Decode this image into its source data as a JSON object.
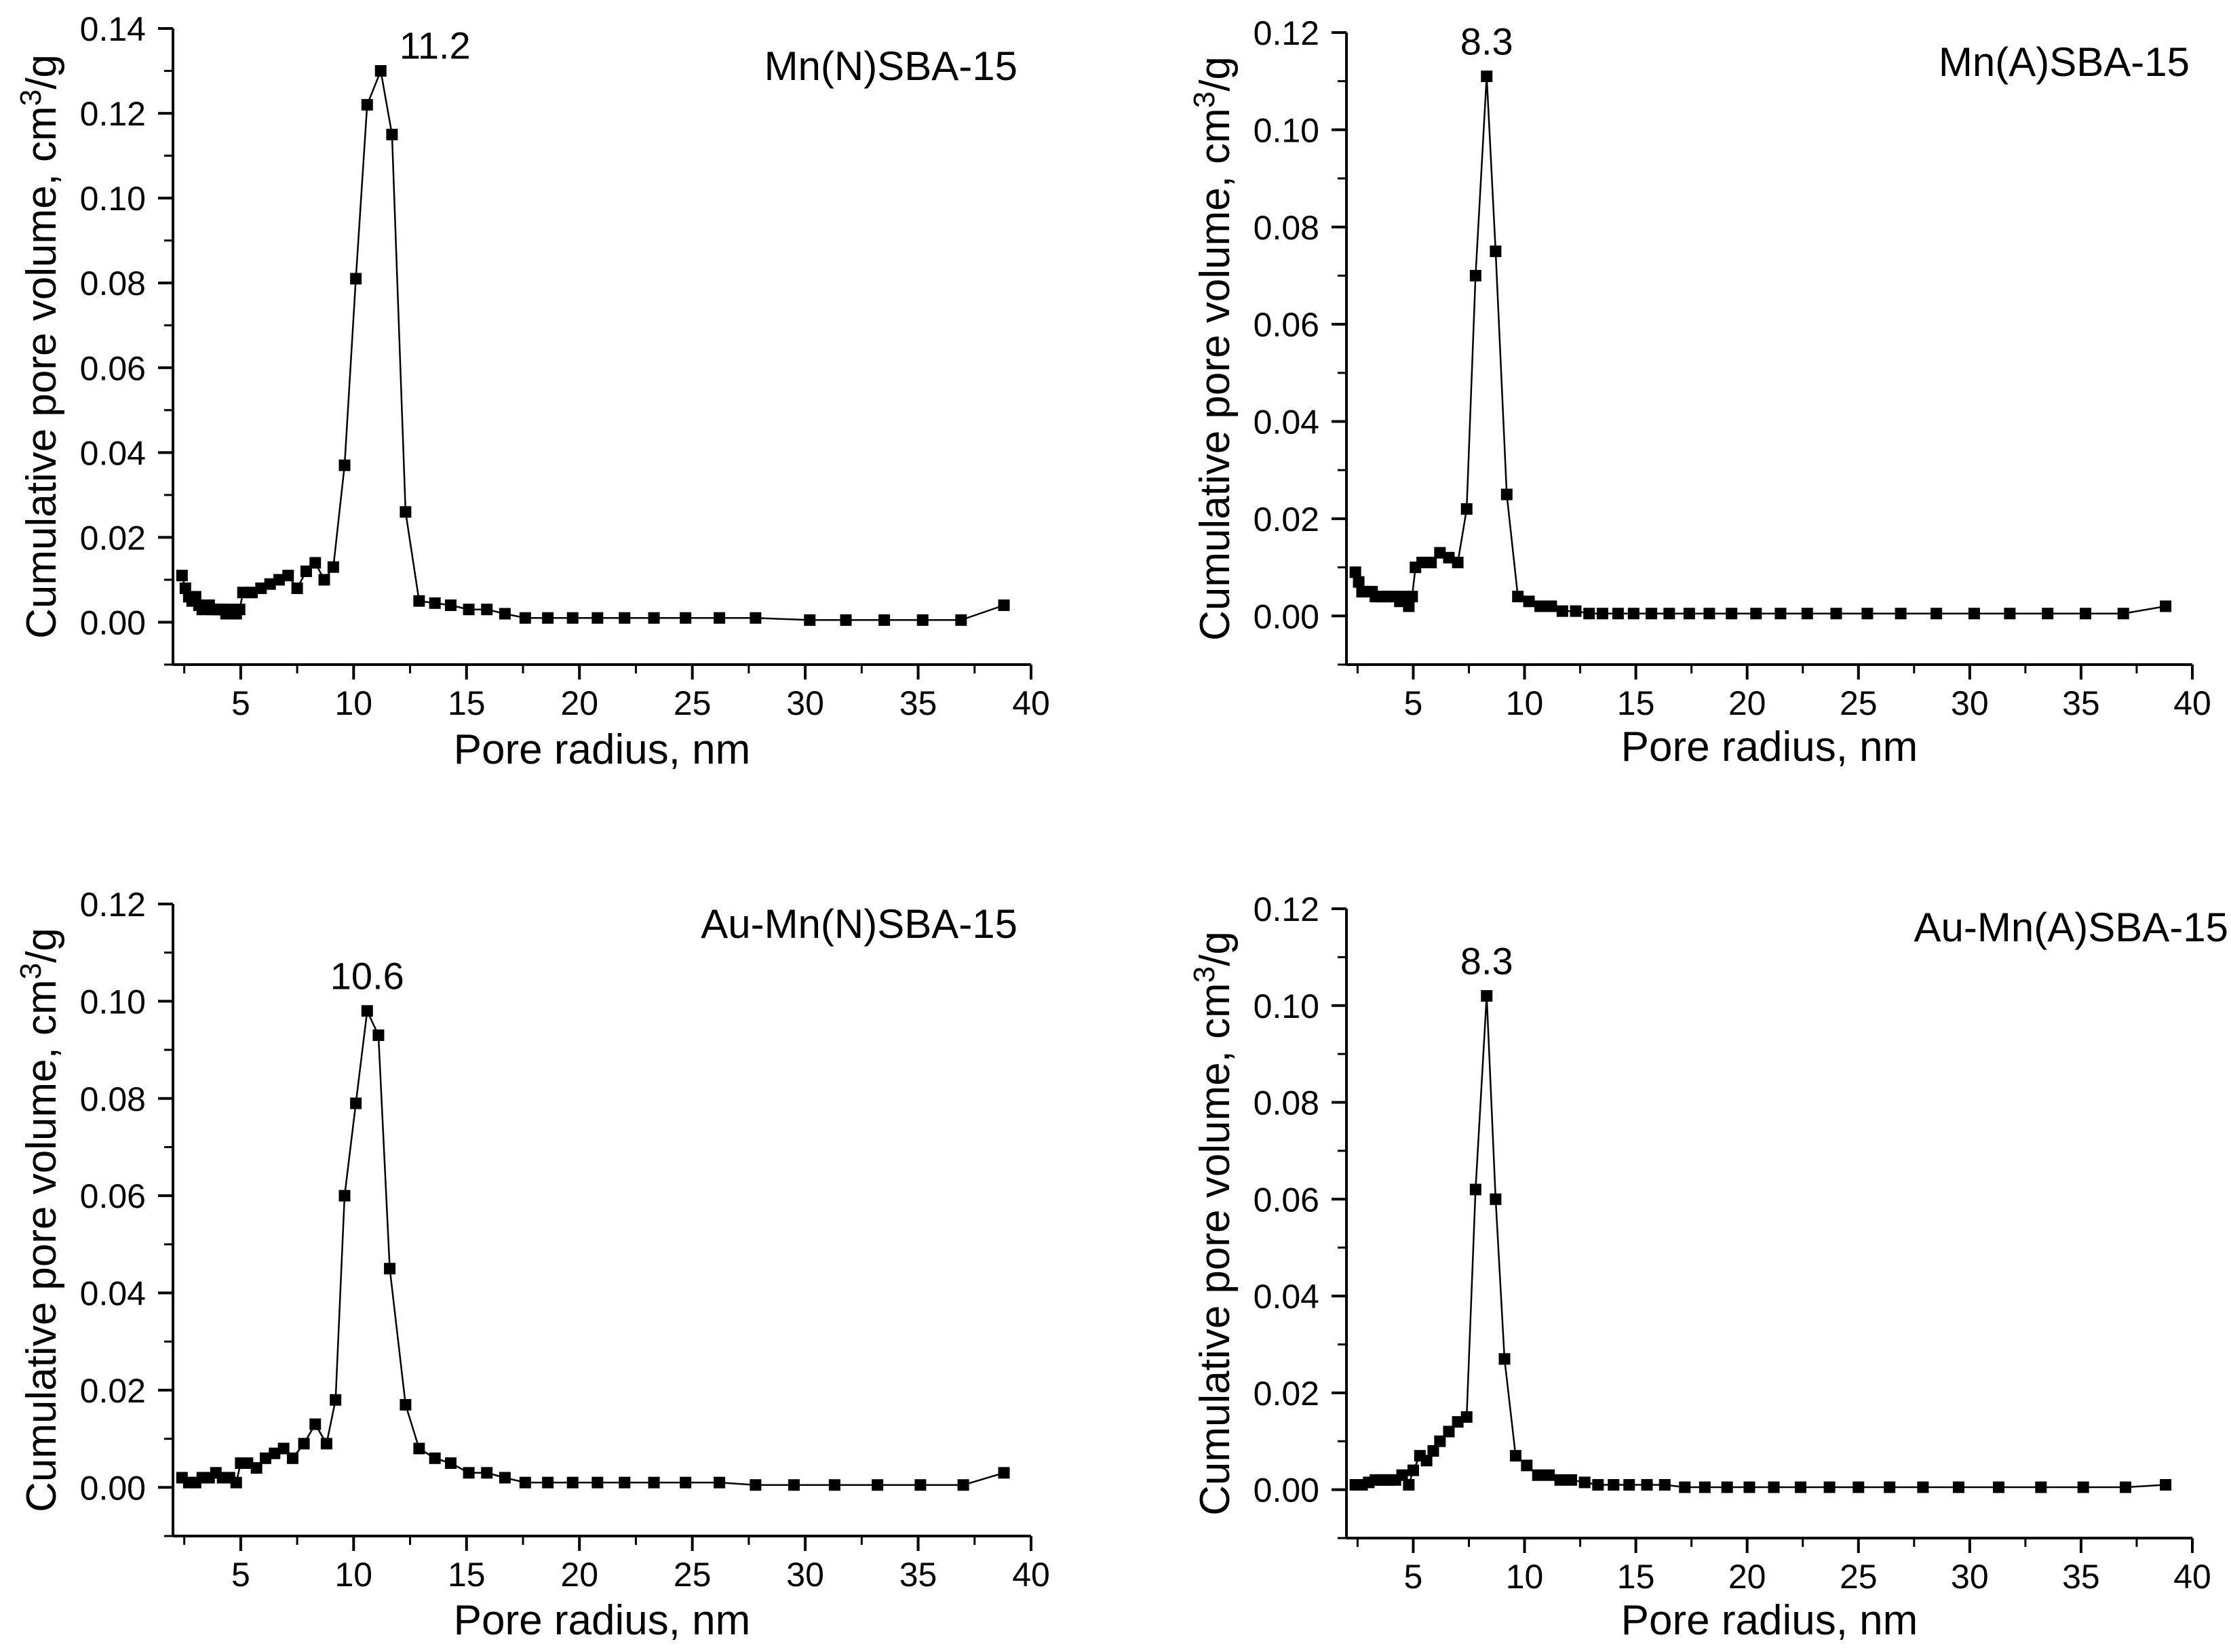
{
  "figure": {
    "colors": {
      "line": "#000000",
      "marker": "#000000",
      "background": "#ffffff"
    }
  },
  "chart_data": [
    {
      "type": "scatter",
      "title": "Mn(N)SBA-15",
      "xlabel": "Pore radius, nm",
      "ylabel": "Cumulative pore volume, cm3/g",
      "ylabel_parts": {
        "main": "Cumulative pore volume, cm",
        "sup": "3",
        "tail": "/g"
      },
      "xlim": [
        2,
        40
      ],
      "ylim": [
        -0.01,
        0.14
      ],
      "xticks": [
        5,
        10,
        15,
        20,
        25,
        30,
        35,
        40
      ],
      "yticks": [
        0.0,
        0.02,
        0.04,
        0.06,
        0.08,
        0.1,
        0.12,
        0.14
      ],
      "xtick_labels": [
        "5",
        "10",
        "15",
        "20",
        "25",
        "30",
        "35",
        "40"
      ],
      "ytick_labels": [
        "0.00",
        "0.02",
        "0.04",
        "0.06",
        "0.08",
        "0.10",
        "0.12",
        "0.14"
      ],
      "peak": {
        "label": "11.2",
        "x": 11.2,
        "y": 0.13
      },
      "series": [
        {
          "name": "Mn(N)SBA-15",
          "x": [
            2.4,
            2.55,
            2.7,
            2.85,
            3.0,
            3.15,
            3.3,
            3.45,
            3.6,
            3.75,
            3.9,
            4.05,
            4.2,
            4.35,
            4.5,
            4.65,
            4.8,
            4.95,
            5.1,
            5.5,
            5.9,
            6.3,
            6.7,
            7.1,
            7.5,
            7.9,
            8.3,
            8.7,
            9.1,
            9.6,
            10.1,
            10.6,
            11.2,
            11.7,
            12.3,
            12.9,
            13.6,
            14.3,
            15.1,
            15.9,
            16.7,
            17.6,
            18.6,
            19.7,
            20.8,
            22.0,
            23.3,
            24.7,
            26.2,
            27.8,
            30.2,
            31.8,
            33.5,
            35.2,
            36.9,
            38.8
          ],
          "y": [
            0.011,
            0.008,
            0.006,
            0.005,
            0.006,
            0.004,
            0.003,
            0.004,
            0.004,
            0.003,
            0.003,
            0.003,
            0.003,
            0.002,
            0.003,
            0.002,
            0.002,
            0.003,
            0.007,
            0.007,
            0.008,
            0.009,
            0.01,
            0.011,
            0.008,
            0.012,
            0.014,
            0.01,
            0.013,
            0.037,
            0.081,
            0.122,
            0.13,
            0.115,
            0.026,
            0.005,
            0.0045,
            0.004,
            0.003,
            0.003,
            0.002,
            0.001,
            0.001,
            0.001,
            0.001,
            0.001,
            0.001,
            0.001,
            0.001,
            0.001,
            0.0005,
            0.0005,
            0.0005,
            0.0005,
            0.0005,
            0.004
          ]
        }
      ]
    },
    {
      "type": "scatter",
      "title": "Mn(A)SBA-15",
      "xlabel": "Pore radius, nm",
      "ylabel": "Cumulative pore volume, cm3/g",
      "ylabel_parts": {
        "main": "Cumulative pore volume, cm",
        "sup": "3",
        "tail": "/g"
      },
      "xlim": [
        2,
        40
      ],
      "ylim": [
        -0.01,
        0.12
      ],
      "xticks": [
        5,
        10,
        15,
        20,
        25,
        30,
        35,
        40
      ],
      "yticks": [
        0.0,
        0.02,
        0.04,
        0.06,
        0.08,
        0.1,
        0.12
      ],
      "xtick_labels": [
        "5",
        "10",
        "15",
        "20",
        "25",
        "30",
        "35",
        "40"
      ],
      "ytick_labels": [
        "0.00",
        "0.02",
        "0.04",
        "0.06",
        "0.08",
        "0.10",
        "0.12"
      ],
      "peak": {
        "label": "8.3",
        "x": 8.3,
        "y": 0.111
      },
      "series": [
        {
          "name": "Mn(A)SBA-15",
          "x": [
            2.4,
            2.55,
            2.7,
            2.85,
            3.0,
            3.15,
            3.3,
            3.45,
            3.6,
            3.8,
            4.0,
            4.2,
            4.4,
            4.6,
            4.8,
            4.95,
            5.1,
            5.4,
            5.8,
            6.2,
            6.6,
            7.0,
            7.4,
            7.8,
            8.3,
            8.7,
            9.2,
            9.7,
            10.2,
            10.7,
            11.2,
            11.7,
            12.3,
            12.9,
            13.5,
            14.2,
            14.9,
            15.7,
            16.5,
            17.4,
            18.3,
            19.3,
            20.4,
            21.5,
            22.7,
            24.0,
            25.4,
            26.9,
            28.5,
            30.2,
            31.8,
            33.5,
            35.2,
            36.9,
            38.8
          ],
          "y": [
            0.009,
            0.007,
            0.005,
            0.005,
            0.005,
            0.005,
            0.004,
            0.004,
            0.004,
            0.004,
            0.004,
            0.004,
            0.003,
            0.004,
            0.002,
            0.004,
            0.01,
            0.011,
            0.011,
            0.013,
            0.012,
            0.011,
            0.022,
            0.07,
            0.111,
            0.075,
            0.025,
            0.004,
            0.003,
            0.002,
            0.002,
            0.001,
            0.001,
            0.0005,
            0.0005,
            0.0005,
            0.0005,
            0.0005,
            0.0005,
            0.0005,
            0.0005,
            0.0005,
            0.0005,
            0.0005,
            0.0005,
            0.0005,
            0.0005,
            0.0005,
            0.0005,
            0.0005,
            0.0005,
            0.0005,
            0.0005,
            0.0005,
            0.002
          ]
        }
      ]
    },
    {
      "type": "scatter",
      "title": "Au-Mn(N)SBA-15",
      "xlabel": "Pore radius, nm",
      "ylabel": "Cumulative pore volume, cm3/g",
      "ylabel_parts": {
        "main": "Cumulative pore volume, cm",
        "sup": "3",
        "tail": "/g"
      },
      "xlim": [
        2,
        40
      ],
      "ylim": [
        -0.01,
        0.12
      ],
      "xticks": [
        5,
        10,
        15,
        20,
        25,
        30,
        35,
        40
      ],
      "yticks": [
        0.0,
        0.02,
        0.04,
        0.06,
        0.08,
        0.1,
        0.12
      ],
      "xtick_labels": [
        "5",
        "10",
        "15",
        "20",
        "25",
        "30",
        "35",
        "40"
      ],
      "ytick_labels": [
        "0.00",
        "0.02",
        "0.04",
        "0.06",
        "0.08",
        "0.10",
        "0.12"
      ],
      "peak": {
        "label": "10.6",
        "x": 10.6,
        "y": 0.098
      },
      "series": [
        {
          "name": "Au-Mn(N)SBA-15",
          "x": [
            2.4,
            2.7,
            3.0,
            3.3,
            3.6,
            3.9,
            4.2,
            4.5,
            4.8,
            5.0,
            5.3,
            5.7,
            6.1,
            6.5,
            6.9,
            7.3,
            7.8,
            8.3,
            8.8,
            9.2,
            9.6,
            10.1,
            10.6,
            11.1,
            11.6,
            12.3,
            12.9,
            13.6,
            14.3,
            15.1,
            15.9,
            16.7,
            17.6,
            18.6,
            19.7,
            20.8,
            22.0,
            23.3,
            24.7,
            26.2,
            27.8,
            29.5,
            31.3,
            33.2,
            35.1,
            37.0,
            38.8
          ],
          "y": [
            0.002,
            0.001,
            0.001,
            0.002,
            0.002,
            0.003,
            0.002,
            0.002,
            0.001,
            0.005,
            0.005,
            0.004,
            0.006,
            0.007,
            0.008,
            0.006,
            0.009,
            0.013,
            0.009,
            0.018,
            0.06,
            0.079,
            0.098,
            0.093,
            0.045,
            0.017,
            0.008,
            0.006,
            0.005,
            0.003,
            0.003,
            0.002,
            0.001,
            0.001,
            0.001,
            0.001,
            0.001,
            0.001,
            0.001,
            0.001,
            0.0005,
            0.0005,
            0.0005,
            0.0005,
            0.0005,
            0.0005,
            0.003
          ]
        }
      ]
    },
    {
      "type": "scatter",
      "title": "Au-Mn(A)SBA-15",
      "xlabel": "Pore radius, nm",
      "ylabel": "Cumulative pore volume, cm3/g",
      "ylabel_parts": {
        "main": "Cumulative pore volume, cm",
        "sup": "3",
        "tail": "/g"
      },
      "xlim": [
        2,
        40
      ],
      "ylim": [
        -0.01,
        0.12
      ],
      "xticks": [
        5,
        10,
        15,
        20,
        25,
        30,
        35,
        40
      ],
      "yticks": [
        0.0,
        0.02,
        0.04,
        0.06,
        0.08,
        0.1,
        0.12
      ],
      "xtick_labels": [
        "5",
        "10",
        "15",
        "20",
        "25",
        "30",
        "35",
        "40"
      ],
      "ytick_labels": [
        "0.00",
        "0.02",
        "0.04",
        "0.06",
        "0.08",
        "0.10",
        "0.12"
      ],
      "peak": {
        "label": "8.3",
        "x": 8.3,
        "y": 0.102
      },
      "series": [
        {
          "name": "Au-Mn(A)SBA-15",
          "x": [
            2.4,
            2.7,
            3.0,
            3.3,
            3.6,
            3.9,
            4.2,
            4.5,
            4.8,
            5.0,
            5.3,
            5.6,
            5.9,
            6.2,
            6.6,
            7.0,
            7.4,
            7.8,
            8.3,
            8.7,
            9.1,
            9.6,
            10.1,
            10.6,
            11.1,
            11.6,
            12.1,
            12.7,
            13.3,
            14.0,
            14.7,
            15.5,
            16.3,
            17.2,
            18.1,
            19.1,
            20.1,
            21.2,
            22.4,
            23.7,
            25.0,
            26.4,
            27.9,
            29.5,
            31.3,
            33.2,
            35.1,
            37.0,
            38.8
          ],
          "y": [
            0.001,
            0.001,
            0.0015,
            0.002,
            0.002,
            0.002,
            0.002,
            0.003,
            0.001,
            0.004,
            0.007,
            0.006,
            0.008,
            0.01,
            0.012,
            0.014,
            0.015,
            0.062,
            0.102,
            0.06,
            0.027,
            0.007,
            0.005,
            0.003,
            0.003,
            0.002,
            0.002,
            0.0015,
            0.001,
            0.001,
            0.001,
            0.001,
            0.001,
            0.0005,
            0.0005,
            0.0005,
            0.0005,
            0.0005,
            0.0005,
            0.0005,
            0.0005,
            0.0005,
            0.0005,
            0.0005,
            0.0005,
            0.0005,
            0.0005,
            0.0005,
            0.001
          ]
        }
      ]
    }
  ]
}
